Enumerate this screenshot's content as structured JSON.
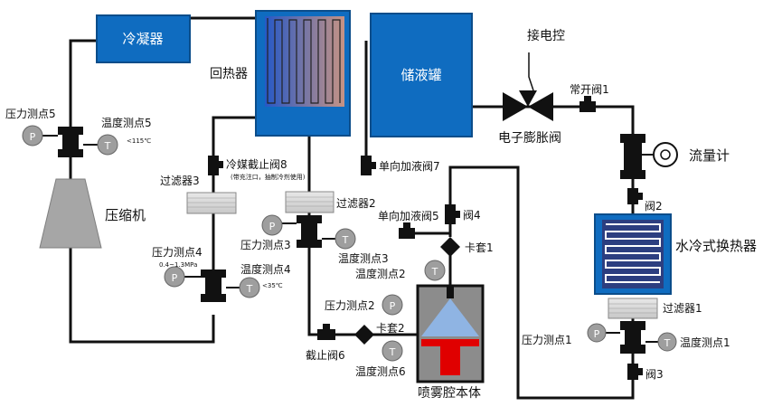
{
  "components": {
    "condenser": "冷凝器",
    "recuperator": "回热器",
    "receiver": "储液罐",
    "compressor": "压缩机",
    "power_control": "接电控",
    "normally_open_valve": "常开阀1",
    "expansion_valve": "电子膨胀阀",
    "flow_meter": "流量计",
    "valve2": "阀2",
    "water_hx": "水冷式换热器",
    "filter1": "过滤器1",
    "filter2": "过滤器2",
    "filter3": "过滤器3",
    "refrigerant_stop_valve": "冷媒截止阀8",
    "refrigerant_stop_valve_note": "(带充注口，抽制冷剂使用)",
    "check_valve7": "单向加液阀7",
    "check_valve5": "单向加液阀5",
    "valve4": "阀4",
    "ferrule1": "卡套1",
    "ferrule2": "卡套2",
    "stop_valve6": "截止阀6",
    "valve3": "阀3",
    "spray_chamber": "喷雾腔本体"
  },
  "sensors": {
    "p5": "压力测点5",
    "t5": "温度测点5",
    "t5_note": "<115℃",
    "p4": "压力测点4",
    "p4_note": "0.4~1.3MPa",
    "t4": "温度测点4",
    "t4_note": "<35℃",
    "p3": "压力测点3",
    "t3": "温度测点3",
    "t2": "温度测点2",
    "p2": "压力测点2",
    "t6": "温度测点6",
    "p1": "压力测点1",
    "t1": "温度测点1",
    "p_symbol": "P",
    "t_symbol": "T"
  },
  "colors": {
    "blue_box": "#0f6cc0",
    "compressor": "#a6a6a6",
    "sensor": "#9e9e9e",
    "cone": "#8fb4e3",
    "heater": "#e00000",
    "chamber": "#8c8c8c"
  }
}
